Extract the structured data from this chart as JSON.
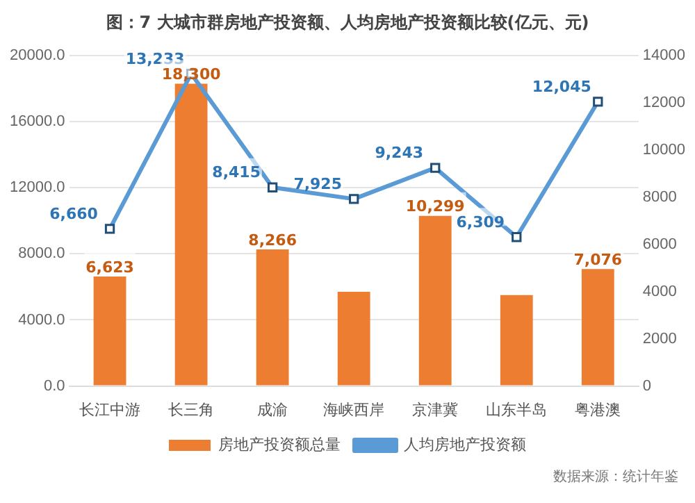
{
  "chart_data": {
    "type": "bar",
    "title": "图：7 大城市群房地产投资额、人均房地产投资额比较(亿元、元)",
    "categories": [
      "长江中游",
      "长三角",
      "成渝",
      "海峡西岸",
      "京津冀",
      "山东半岛",
      "粤港澳"
    ],
    "series": [
      {
        "name": "房地产投资额总量",
        "color": "#ed7d31",
        "values": [
          6623,
          18300,
          8266,
          5700,
          10299,
          5500,
          7076
        ],
        "value_labels": [
          "6,623",
          "18,300",
          "8,266",
          null,
          "10,299",
          null,
          "7,076"
        ]
      },
      {
        "name": "人均房地产投资额",
        "type": "line",
        "axis": "y2",
        "color": "#5b9bd5",
        "marker": "square",
        "values": [
          6660,
          13233,
          8415,
          7925,
          9243,
          6309,
          12045
        ],
        "value_labels": [
          "6,660",
          "13,233",
          "8,415",
          "7,925",
          "9,243",
          "6,309",
          "12,045"
        ]
      }
    ],
    "ylim": [
      0,
      20000
    ],
    "yticks": [
      {
        "value": 0,
        "label": "0.0"
      },
      {
        "value": 4000,
        "label": "4000.0"
      },
      {
        "value": 8000,
        "label": "8000.0"
      },
      {
        "value": 12000,
        "label": "12000.0"
      },
      {
        "value": 16000,
        "label": "16000.0"
      },
      {
        "value": 20000,
        "label": "20000.0"
      }
    ],
    "y2lim": [
      0,
      14000
    ],
    "y2ticks": [
      0,
      2000,
      4000,
      6000,
      8000,
      10000,
      12000,
      14000
    ],
    "grid": "y",
    "legend": "bottom",
    "annotations": [
      "数据来源：统计年鉴"
    ]
  }
}
